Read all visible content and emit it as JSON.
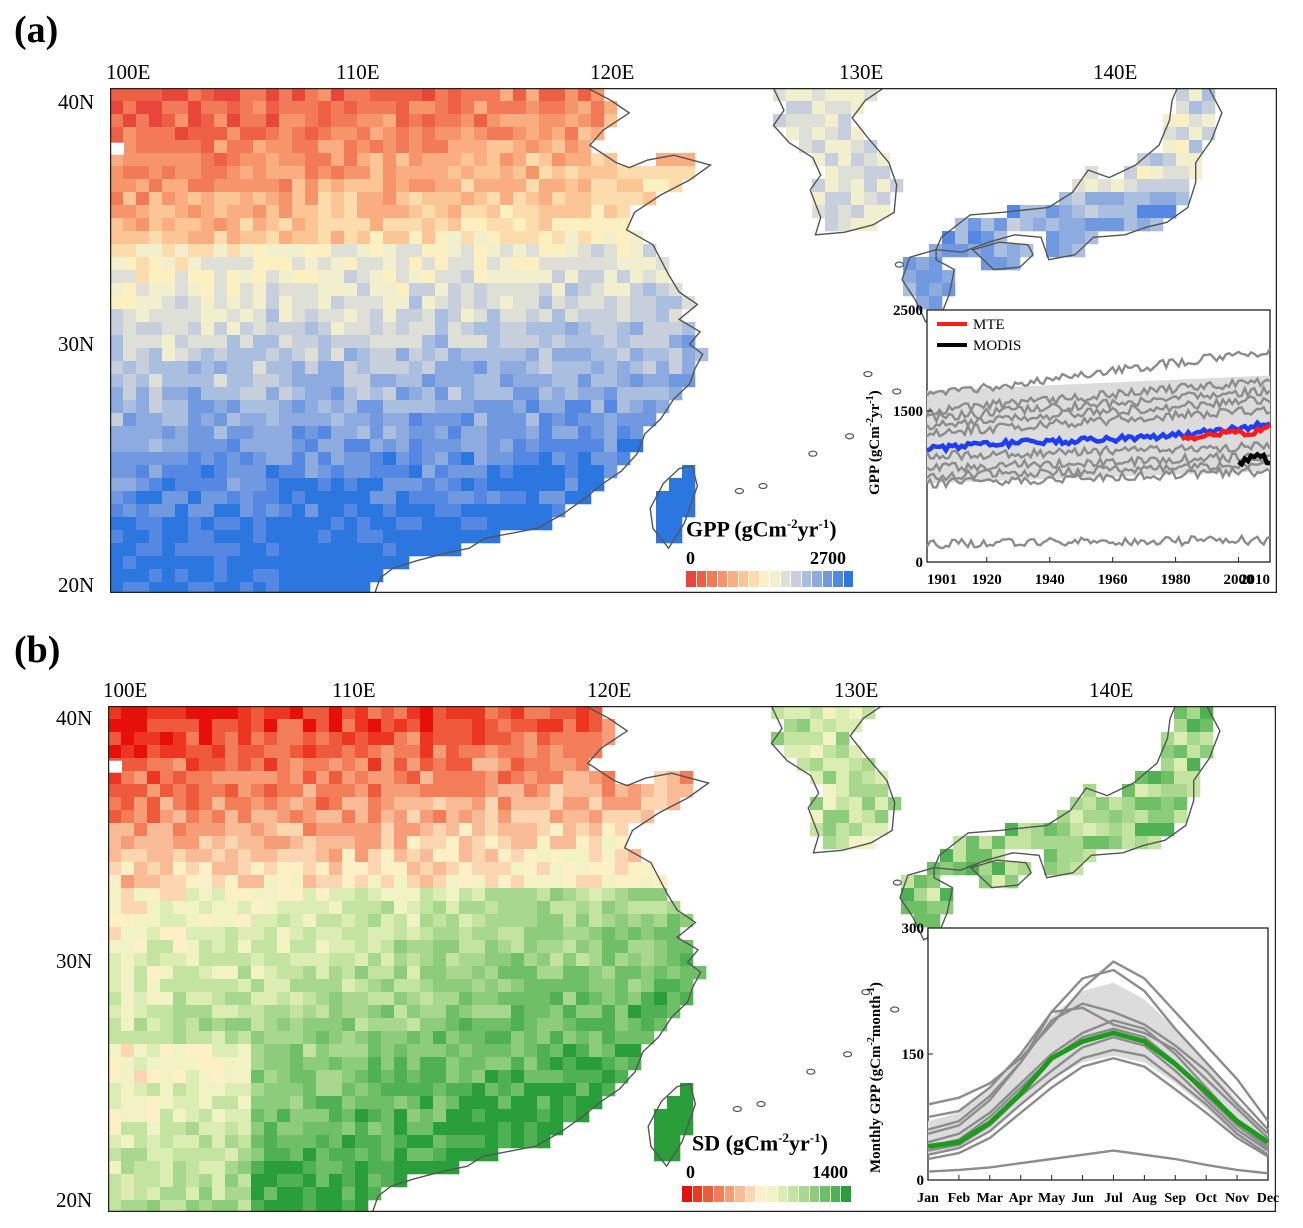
{
  "panel_a": {
    "label": "(a)",
    "lon_ticks": [
      "100E",
      "110E",
      "120E",
      "130E",
      "140E"
    ],
    "lat_ticks": [
      "40N",
      "30N",
      "20N"
    ],
    "colorbar": {
      "title_main": "GPP (gCm",
      "title_sup1": "-2",
      "title_mid": "yr",
      "title_sup2": "-1",
      "title_end": ")",
      "min_label": "0",
      "max_label": "2700",
      "colors": [
        "#e8463a",
        "#ee6046",
        "#f27a58",
        "#f6946a",
        "#f9ad80",
        "#fbc596",
        "#fcdcac",
        "#fdf0c0",
        "#f2efcf",
        "#dedfd6",
        "#c8cfdc",
        "#aabedf",
        "#8eabdf",
        "#7199e0",
        "#5488e2",
        "#2c76e0"
      ]
    },
    "map_colors": [
      "#e8463a",
      "#ee6046",
      "#f27a58",
      "#f6946a",
      "#f9ad80",
      "#fbc596",
      "#fcdcac",
      "#fdf0c0",
      "#f2efcf",
      "#dedfd6",
      "#c8cfdc",
      "#aabedf",
      "#8eabdf",
      "#7199e0",
      "#5488e2",
      "#2c76e0"
    ]
  },
  "panel_b": {
    "label": "(b)",
    "lon_ticks": [
      "100E",
      "110E",
      "120E",
      "130E",
      "140E"
    ],
    "lat_ticks": [
      "40N",
      "30N",
      "20N"
    ],
    "colorbar": {
      "title_main": "SD (gCm",
      "title_sup1": "-2",
      "title_mid": "yr",
      "title_sup2": "-1",
      "title_end": ")",
      "min_label": "0",
      "max_label": "1400",
      "colors": [
        "#e60f0a",
        "#ec3622",
        "#f05a3c",
        "#f37d58",
        "#f69c76",
        "#f8bb96",
        "#fbd6b1",
        "#fdf0c6",
        "#f1f3c4",
        "#dcedb3",
        "#c3e3a0",
        "#a8d88d",
        "#8ccc7b",
        "#6fbf67",
        "#4fb154",
        "#2a9e3b"
      ]
    },
    "map_colors": [
      "#e60f0a",
      "#ec3622",
      "#f05a3c",
      "#f37d58",
      "#f69c76",
      "#f8bb96",
      "#fbd6b1",
      "#fdf0c6",
      "#f1f3c4",
      "#dcedb3",
      "#c3e3a0",
      "#a8d88d",
      "#8ccc7b",
      "#6fbf67",
      "#4fb154",
      "#2a9e3b"
    ]
  },
  "chart_data": [
    {
      "type": "line",
      "panel": "a-inset",
      "ylabel_main": "GPP (gCm",
      "ylabel_sup1": "-2",
      "ylabel_mid": "yr",
      "ylabel_sup2": "-1",
      "ylabel_end": ")",
      "x_ticks": [
        1901,
        1920,
        1940,
        1960,
        1980,
        2000,
        2010
      ],
      "x_tick_labels": [
        "1901",
        "1920",
        "1940",
        "1960",
        "1980",
        "2000",
        "2010"
      ],
      "y_ticks": [
        0,
        1500,
        2500
      ],
      "y_tick_labels": [
        "0",
        "1500",
        "2500"
      ],
      "xlim": [
        1901,
        2010
      ],
      "ylim": [
        0,
        2500
      ],
      "legend": {
        "placement": "top-left",
        "entries": [
          "MTE",
          "MODIS"
        ]
      },
      "series": [
        {
          "name": "MTE",
          "color": "#ff1a1a",
          "x": [
            1982,
            1990,
            2000,
            2004,
            2010
          ],
          "y": [
            1220,
            1250,
            1300,
            1250,
            1380
          ]
        },
        {
          "name": "MODIS",
          "color": "#000000",
          "x": [
            2000,
            2003,
            2006,
            2010
          ],
          "y": [
            960,
            1020,
            1060,
            1000
          ]
        },
        {
          "color": "#1f3df5",
          "x": [
            1901,
            1920,
            1940,
            1960,
            1980,
            2000,
            2010
          ],
          "y": [
            1120,
            1170,
            1190,
            1220,
            1260,
            1320,
            1380
          ]
        }
      ],
      "model_series": [
        {
          "x": [
            1901,
            2010
          ],
          "y": [
            1650,
            2100
          ]
        },
        {
          "x": [
            1901,
            2010
          ],
          "y": [
            1500,
            1800
          ]
        },
        {
          "x": [
            1901,
            2010
          ],
          "y": [
            1430,
            1700
          ]
        },
        {
          "x": [
            1901,
            2010
          ],
          "y": [
            1350,
            1620
          ]
        },
        {
          "x": [
            1901,
            2010
          ],
          "y": [
            1280,
            1520
          ]
        },
        {
          "x": [
            1901,
            2010
          ],
          "y": [
            1050,
            1150
          ]
        },
        {
          "x": [
            1901,
            2010
          ],
          "y": [
            930,
            1050
          ]
        },
        {
          "x": [
            1901,
            2010
          ],
          "y": [
            850,
            970
          ]
        },
        {
          "x": [
            1901,
            2010
          ],
          "y": [
            780,
            900
          ]
        },
        {
          "x": [
            1901,
            2010
          ],
          "y": [
            180,
            220
          ]
        }
      ],
      "band": {
        "x": [
          1901,
          2010
        ],
        "lower": [
          780,
          900
        ],
        "upper": [
          1700,
          1850
        ]
      }
    },
    {
      "type": "line",
      "panel": "b-inset",
      "ylabel_main": "Monthly GPP (gCm",
      "ylabel_sup1": "-2",
      "ylabel_mid": "month",
      "ylabel_sup2": "-1",
      "ylabel_end": ")",
      "categories": [
        "Jan",
        "Feb",
        "Mar",
        "Apr",
        "May",
        "Jun",
        "Jul",
        "Aug",
        "Sep",
        "Oct",
        "Nov",
        "Dec"
      ],
      "y_ticks": [
        0,
        150,
        300
      ],
      "y_tick_labels": [
        "0",
        "150",
        "300"
      ],
      "ylim": [
        0,
        300
      ],
      "series": [
        {
          "color": "#1e9a1e",
          "values": [
            40,
            45,
            68,
            103,
            145,
            165,
            175,
            165,
            138,
            105,
            70,
            45
          ]
        }
      ],
      "model_series": [
        [
          90,
          98,
          115,
          145,
          185,
          228,
          260,
          240,
          200,
          160,
          120,
          70
        ],
        [
          75,
          82,
          110,
          150,
          200,
          240,
          250,
          225,
          180,
          140,
          100,
          60
        ],
        [
          60,
          70,
          100,
          140,
          190,
          210,
          200,
          185,
          160,
          130,
          90,
          55
        ],
        [
          55,
          65,
          95,
          140,
          200,
          205,
          185,
          175,
          155,
          120,
          85,
          50
        ],
        [
          45,
          55,
          80,
          115,
          150,
          175,
          190,
          180,
          150,
          110,
          70,
          40
        ],
        [
          40,
          48,
          75,
          110,
          145,
          170,
          180,
          170,
          140,
          100,
          65,
          38
        ],
        [
          35,
          42,
          65,
          100,
          130,
          158,
          170,
          160,
          130,
          95,
          60,
          35
        ],
        [
          30,
          38,
          58,
          90,
          120,
          145,
          155,
          148,
          120,
          90,
          55,
          30
        ],
        [
          25,
          32,
          50,
          80,
          110,
          135,
          145,
          135,
          108,
          80,
          50,
          28
        ],
        [
          10,
          12,
          15,
          20,
          25,
          30,
          35,
          30,
          25,
          18,
          12,
          8
        ]
      ],
      "band": {
        "lower": [
          30,
          38,
          58,
          90,
          120,
          140,
          148,
          140,
          115,
          85,
          50,
          28
        ],
        "upper": [
          70,
          80,
          108,
          150,
          195,
          225,
          235,
          215,
          180,
          140,
          95,
          55
        ]
      }
    }
  ]
}
